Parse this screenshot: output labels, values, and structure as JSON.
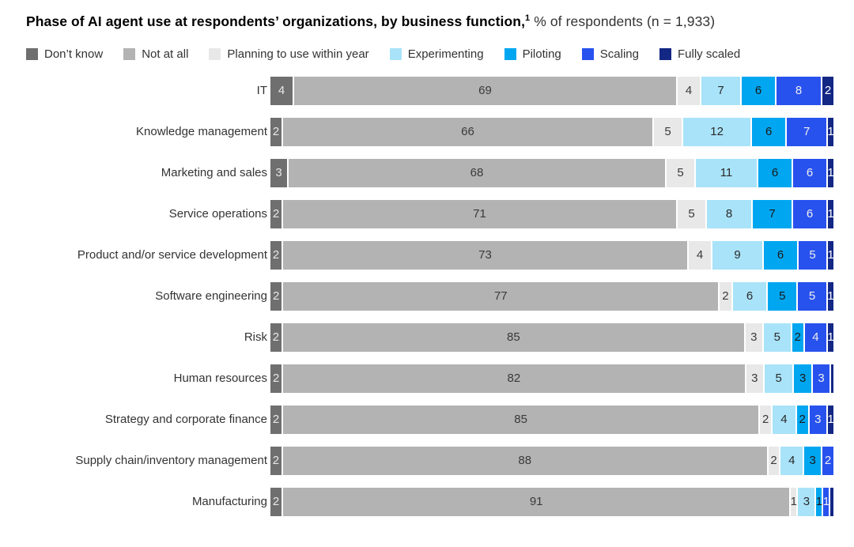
{
  "title": {
    "bold": "Phase of AI agent use at respondents’ organizations, by business function,",
    "superscript": "1",
    "regular": " % of respondents (n = 1,933)"
  },
  "legend": [
    {
      "label": "Don’t know",
      "color": "#6F6F6F"
    },
    {
      "label": "Not at all",
      "color": "#B3B3B3"
    },
    {
      "label": "Planning to use within year",
      "color": "#E8E8E8"
    },
    {
      "label": "Experimenting",
      "color": "#A9E3F9"
    },
    {
      "label": "Piloting",
      "color": "#00A6F0"
    },
    {
      "label": "Scaling",
      "color": "#2852EE"
    },
    {
      "label": "Fully scaled",
      "color": "#132785"
    }
  ],
  "chart_data": {
    "type": "bar",
    "stacked": true,
    "orientation": "horizontal",
    "title": "Phase of AI agent use at respondents’ organizations, by business function",
    "unit": "% of respondents",
    "sample_size": "n = 1,933",
    "series_names": [
      "Don’t know",
      "Not at all",
      "Planning to use within year",
      "Experimenting",
      "Piloting",
      "Scaling",
      "Fully scaled"
    ],
    "series_colors": [
      "#6F6F6F",
      "#B3B3B3",
      "#E8E8E8",
      "#A9E3F9",
      "#00A6F0",
      "#2852EE",
      "#132785"
    ],
    "series_text_colors": [
      "#E8E8E8",
      "#3A3A3A",
      "#3A3A3A",
      "#2A2A2A",
      "#1A1A1A",
      "#EFEFEF",
      "#FFFFFF"
    ],
    "categories": [
      "IT",
      "Knowledge management",
      "Marketing and sales",
      "Service operations",
      "Product and/or service development",
      "Software engineering",
      "Risk",
      "Human resources",
      "Strategy and corporate finance",
      "Supply chain/inventory management",
      "Manufacturing"
    ],
    "rows": [
      {
        "category": "IT",
        "values": [
          4,
          69,
          4,
          7,
          6,
          8,
          2
        ],
        "labels": [
          "4",
          "69",
          "4",
          "7",
          "6",
          "8",
          "2"
        ]
      },
      {
        "category": "Knowledge management",
        "values": [
          2,
          66,
          5,
          12,
          6,
          7,
          1
        ],
        "labels": [
          "2",
          "66",
          "5",
          "12",
          "6",
          "7",
          "1"
        ]
      },
      {
        "category": "Marketing and sales",
        "values": [
          3,
          68,
          5,
          11,
          6,
          6,
          1
        ],
        "labels": [
          "3",
          "68",
          "5",
          "11",
          "6",
          "6",
          "1"
        ]
      },
      {
        "category": "Service operations",
        "values": [
          2,
          71,
          5,
          8,
          7,
          6,
          1
        ],
        "labels": [
          "2",
          "71",
          "5",
          "8",
          "7",
          "6",
          "1"
        ]
      },
      {
        "category": "Product and/or service development",
        "values": [
          2,
          73,
          4,
          9,
          6,
          5,
          1
        ],
        "labels": [
          "2",
          "73",
          "4",
          "9",
          "6",
          "5",
          "1"
        ]
      },
      {
        "category": "Software engineering",
        "values": [
          2,
          77,
          2,
          6,
          5,
          5,
          1
        ],
        "labels": [
          "2",
          "77",
          "2",
          "6",
          "5",
          "5",
          "1"
        ]
      },
      {
        "category": "Risk",
        "values": [
          2,
          85,
          3,
          5,
          2,
          4,
          1
        ],
        "labels": [
          "2",
          "85",
          "3",
          "5",
          "2",
          "4",
          "1"
        ]
      },
      {
        "category": "Human resources",
        "values": [
          2,
          82,
          3,
          5,
          3,
          3,
          0.4
        ],
        "labels": [
          "2",
          "82",
          "3",
          "5",
          "3",
          "3",
          ""
        ]
      },
      {
        "category": "Strategy and corporate finance",
        "values": [
          2,
          85,
          2,
          4,
          2,
          3,
          1
        ],
        "labels": [
          "2",
          "85",
          "2",
          "4",
          "2",
          "3",
          "1"
        ]
      },
      {
        "category": "Supply chain/inventory management",
        "values": [
          2,
          88,
          2,
          4,
          3,
          2,
          0
        ],
        "labels": [
          "2",
          "88",
          "2",
          "4",
          "3",
          "2",
          ""
        ]
      },
      {
        "category": "Manufacturing",
        "values": [
          2,
          91,
          1,
          3,
          1,
          1,
          0.5
        ],
        "labels": [
          "2",
          "91",
          "1",
          "3",
          "1",
          "1",
          ""
        ]
      }
    ]
  }
}
